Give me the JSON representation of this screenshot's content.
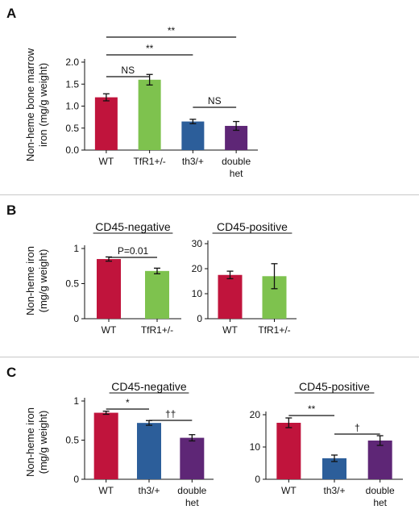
{
  "colors": {
    "WT": "#c0143c",
    "TfR1+/-": "#7ec24e",
    "th3/+": "#2c5e9a",
    "double het": "#5e2676",
    "axis": "#111111"
  },
  "panels": [
    {
      "letter": "A",
      "ylabel_lines": [
        "Non-heme bone marrow",
        "iron (mg/g weight)"
      ]
    },
    {
      "letter": "B",
      "ylabel_lines": [
        "Non-heme iron",
        "(mg/g weight)"
      ]
    },
    {
      "letter": "C",
      "ylabel_lines": [
        "Non-heme iron",
        "(mg/g weight)"
      ]
    }
  ],
  "chart_data": [
    {
      "id": "A",
      "type": "bar",
      "title": "",
      "categories": [
        "WT",
        "TfR1+/-",
        "th3/+",
        "double het"
      ],
      "category_label_lines": [
        [
          "WT"
        ],
        [
          "TfR1+/-"
        ],
        [
          "th3/+"
        ],
        [
          "double",
          "het"
        ]
      ],
      "series": [
        {
          "values": [
            1.2,
            1.6,
            0.65,
            0.55
          ],
          "errors": [
            0.08,
            0.12,
            0.05,
            0.1
          ]
        }
      ],
      "ylim": [
        0,
        2.0
      ],
      "yticks": [
        0,
        0.5,
        1.0,
        1.5,
        2.0
      ],
      "ytick_labels": [
        "0.0",
        "0.5",
        "1.0",
        "1.5",
        "2.0"
      ],
      "annotations": [
        {
          "from": "WT",
          "to": "double het",
          "label": "**"
        },
        {
          "from": "WT",
          "to": "th3/+",
          "label": "**"
        },
        {
          "from": "WT",
          "to": "TfR1+/-",
          "label": "NS"
        },
        {
          "from": "th3/+",
          "to": "double het",
          "label": "NS"
        }
      ]
    },
    {
      "id": "B-neg",
      "type": "bar",
      "title": "CD45-negative",
      "categories": [
        "WT",
        "TfR1+/-"
      ],
      "category_label_lines": [
        [
          "WT"
        ],
        [
          "TfR1+/-"
        ]
      ],
      "series": [
        {
          "values": [
            0.85,
            0.68
          ],
          "errors": [
            0.03,
            0.04
          ]
        }
      ],
      "ylim": [
        0,
        1
      ],
      "yticks": [
        0,
        0.5,
        1
      ],
      "ytick_labels": [
        "0",
        "0.5",
        "1"
      ],
      "annotations": [
        {
          "from": "WT",
          "to": "TfR1+/-",
          "label": "P=0.01"
        }
      ]
    },
    {
      "id": "B-pos",
      "type": "bar",
      "title": "CD45-positive",
      "categories": [
        "WT",
        "TfR1+/-"
      ],
      "category_label_lines": [
        [
          "WT"
        ],
        [
          "TfR1+/-"
        ]
      ],
      "series": [
        {
          "values": [
            17.5,
            17.0
          ],
          "errors": [
            1.5,
            5.0
          ]
        }
      ],
      "ylim": [
        0,
        30
      ],
      "yticks": [
        0,
        10,
        20,
        30
      ],
      "ytick_labels": [
        "0",
        "10",
        "20",
        "30"
      ],
      "annotations": []
    },
    {
      "id": "C-neg",
      "type": "bar",
      "title": "CD45-negative",
      "categories": [
        "WT",
        "th3/+",
        "double het"
      ],
      "category_label_lines": [
        [
          "WT"
        ],
        [
          "th3/+"
        ],
        [
          "double",
          "het"
        ]
      ],
      "series": [
        {
          "values": [
            0.85,
            0.72,
            0.53
          ],
          "errors": [
            0.02,
            0.03,
            0.04
          ]
        }
      ],
      "ylim": [
        0,
        1
      ],
      "yticks": [
        0,
        0.5,
        1
      ],
      "ytick_labels": [
        "0",
        "0.5",
        "1"
      ],
      "annotations": [
        {
          "from": "WT",
          "to": "th3/+",
          "label": "*"
        },
        {
          "from": "th3/+",
          "to": "double het",
          "label": "††"
        }
      ]
    },
    {
      "id": "C-pos",
      "type": "bar",
      "title": "CD45-positive",
      "categories": [
        "WT",
        "th3/+",
        "double het"
      ],
      "category_label_lines": [
        [
          "WT"
        ],
        [
          "th3/+"
        ],
        [
          "double",
          "het"
        ]
      ],
      "series": [
        {
          "values": [
            17.5,
            6.5,
            12.0
          ],
          "errors": [
            1.5,
            1.0,
            1.5
          ]
        }
      ],
      "ylim": [
        0,
        20
      ],
      "yticks": [
        0,
        10,
        20
      ],
      "ytick_labels": [
        "0",
        "10",
        "20"
      ],
      "annotations": [
        {
          "from": "WT",
          "to": "th3/+",
          "label": "**"
        },
        {
          "from": "th3/+",
          "to": "double het",
          "label": "†"
        }
      ]
    }
  ]
}
